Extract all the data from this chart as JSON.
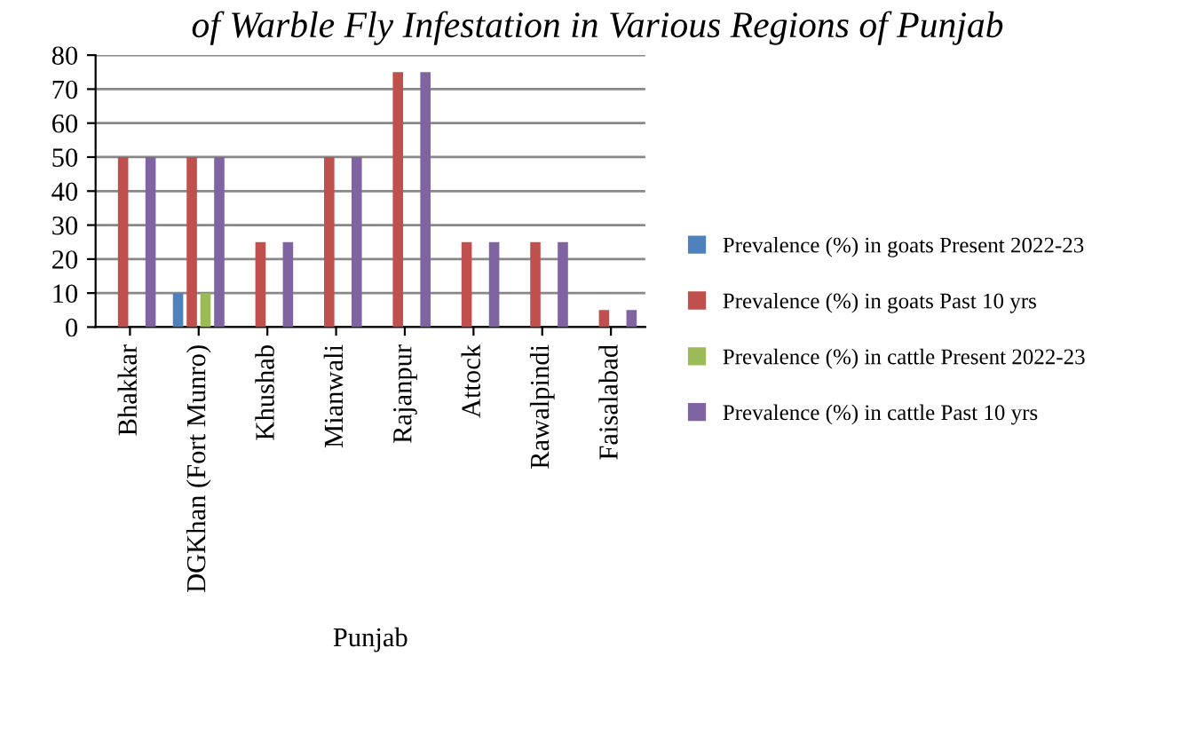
{
  "chart_data": {
    "type": "bar",
    "title": "of Warble Fly Infestation in Various Regions of Punjab",
    "xlabel": "Punjab",
    "categories": [
      "Bhakkar",
      "DGKhan (Fort Munro)",
      "Khushab",
      "Mianwali",
      "Rajanpur",
      "Attock",
      "Rawalpindi",
      "Faisalabad"
    ],
    "series": [
      {
        "name": "Prevalence (%) in goats Present 2022-23",
        "color": "#4f81bd",
        "values": [
          0,
          10,
          0,
          0,
          0,
          0,
          0,
          0
        ]
      },
      {
        "name": "Prevalence (%) in goats Past 10 yrs",
        "color": "#c0504d",
        "values": [
          50,
          50,
          25,
          50,
          75,
          25,
          25,
          5
        ]
      },
      {
        "name": "Prevalence (%) in cattle Present 2022-23",
        "color": "#9bbb59",
        "values": [
          0,
          10,
          0,
          0,
          0,
          0,
          0,
          0
        ]
      },
      {
        "name": "Prevalence (%) in cattle Past 10 yrs",
        "color": "#8064a2",
        "values": [
          50,
          50,
          25,
          50,
          75,
          25,
          25,
          5
        ]
      }
    ],
    "ylim": [
      0,
      80
    ],
    "yticks": [
      0,
      10,
      20,
      30,
      40,
      50,
      60,
      70,
      80
    ],
    "grid": "y",
    "legend": "right"
  }
}
